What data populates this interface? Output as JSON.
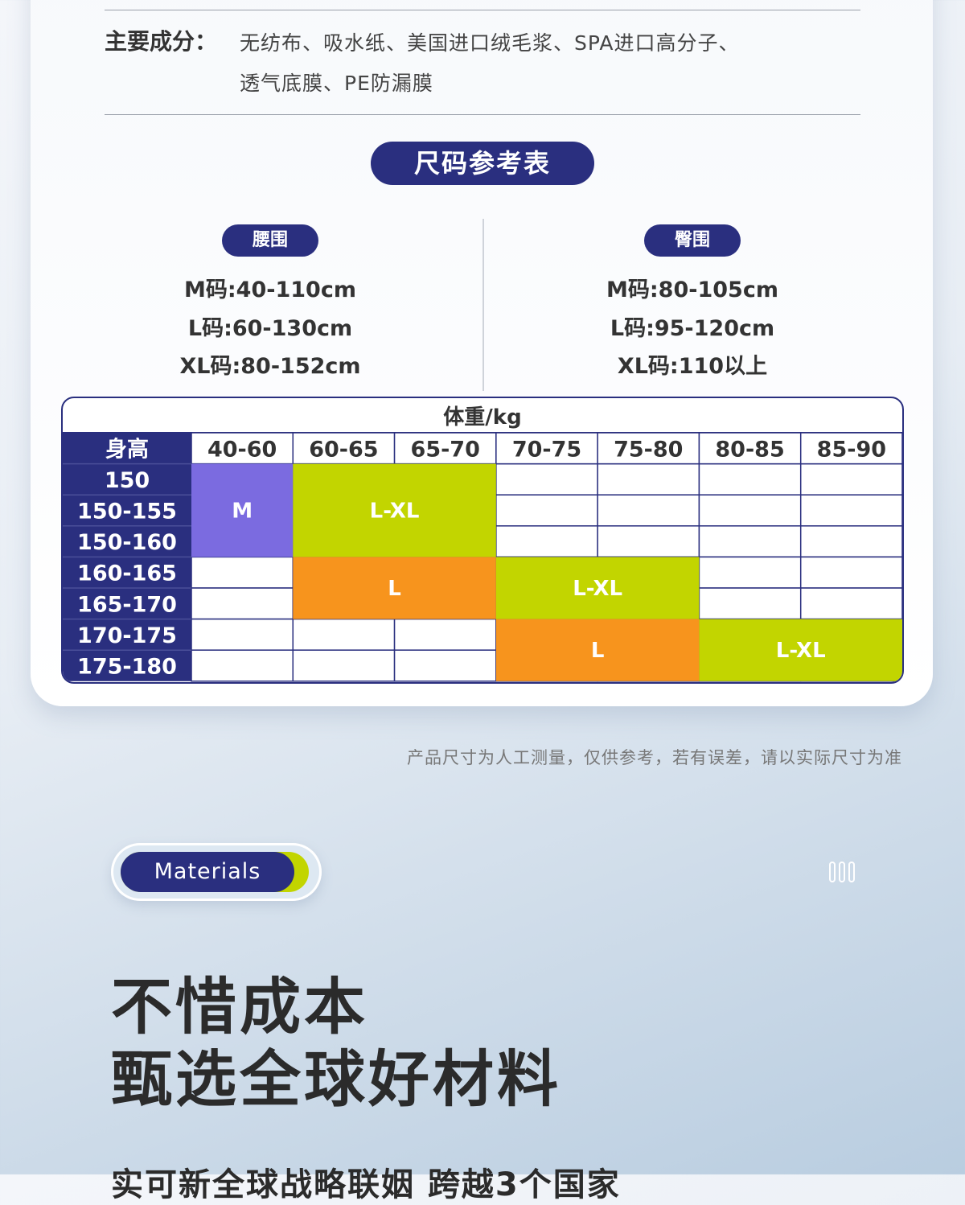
{
  "ingredients": {
    "label": "主要成分：",
    "line1": "无纺布、吸水纸、美国进口绒毛浆、SPA进口高分子、",
    "line2": "透气底膜、PE防漏膜"
  },
  "size_chart": {
    "title": "尺码参考表",
    "waist": {
      "label": "腰围",
      "sizes": [
        "M码:40-110cm",
        "L码:60-130cm",
        "XL码:80-152cm"
      ]
    },
    "hip": {
      "label": "臀围",
      "sizes": [
        "M码:80-105cm",
        "L码:95-120cm",
        "XL码:110以上"
      ]
    }
  },
  "chart_data": {
    "type": "table",
    "title": "体重/kg",
    "row_header": "身高",
    "columns": [
      "40-60",
      "60-65",
      "65-70",
      "70-75",
      "75-80",
      "80-85",
      "85-90"
    ],
    "rows": [
      "150",
      "150-155",
      "150-160",
      "160-165",
      "165-170",
      "170-175",
      "175-180"
    ],
    "cells": [
      {
        "label": "M",
        "rows": [
          "150",
          "150-155",
          "150-160"
        ],
        "columns": [
          "40-60"
        ],
        "color": "#7b6be0"
      },
      {
        "label": "L-XL",
        "rows": [
          "150",
          "150-155",
          "150-160"
        ],
        "columns": [
          "60-65",
          "65-70"
        ],
        "color": "#c2d500"
      },
      {
        "label": "L",
        "rows": [
          "160-165",
          "165-170"
        ],
        "columns": [
          "60-65",
          "65-70"
        ],
        "color": "#f7941d"
      },
      {
        "label": "L-XL",
        "rows": [
          "160-165",
          "165-170"
        ],
        "columns": [
          "70-75",
          "75-80"
        ],
        "color": "#c2d500"
      },
      {
        "label": "L",
        "rows": [
          "170-175",
          "175-180"
        ],
        "columns": [
          "70-75",
          "75-80"
        ],
        "color": "#f7941d"
      },
      {
        "label": "L-XL",
        "rows": [
          "170-175",
          "175-180"
        ],
        "columns": [
          "80-85",
          "85-90"
        ],
        "color": "#c2d500"
      }
    ],
    "header_color": "#2a2f7f"
  },
  "note": "产品尺寸为人工测量，仅供参考，若有误差，请以实际尺寸为准",
  "materials": {
    "badge": "Materials",
    "headline1": "不惜成本",
    "headline2": "甄选全球好材料",
    "subline": "实可新全球战略联姻 跨越3个国家"
  },
  "colors": {
    "navy": "#2a2f7f",
    "lime": "#c2d500",
    "orange": "#f7941d",
    "purple": "#7b6be0"
  }
}
